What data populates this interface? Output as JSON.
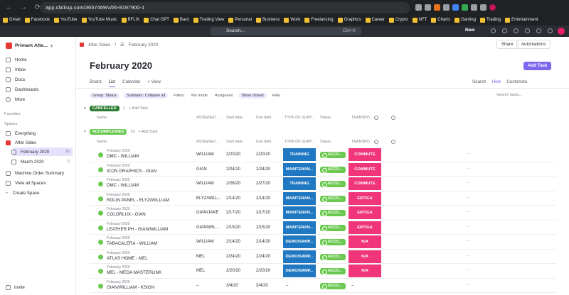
{
  "browser": {
    "url": "app.clickup.com/3657469/v/l/6-8197900-1",
    "bookmarks": [
      "Gmail",
      "Facebook",
      "YouTube",
      "YouTube Music",
      "BFLIX",
      "Chat GPT",
      "Bard",
      "Trading View",
      "Personal",
      "Business",
      "Work",
      "Freelancing",
      "Graphics",
      "Career",
      "Crypto",
      "NFT",
      "Charts",
      "Gaming",
      "Trading",
      "Entertainment"
    ]
  },
  "topbar": {
    "search_placeholder": "Search...",
    "shortcut": "Ctrl+K",
    "new_label": "New"
  },
  "sidebar": {
    "workspace": "Primark Afte...",
    "nav": [
      "Home",
      "Inbox",
      "Docs",
      "Dashboards",
      "More"
    ],
    "favorites_label": "Favorites",
    "spaces_label": "Spaces",
    "everything": "Everything",
    "space_name": "After Sales",
    "lists": [
      {
        "name": "February 2020",
        "count": "16"
      },
      {
        "name": "March 2020",
        "count": "5"
      }
    ],
    "extra": [
      "Machine Order Summary",
      "View all Spaces",
      "Create Space"
    ],
    "invite": "Invite"
  },
  "header": {
    "crumb_space": "After Sales",
    "crumb_list": "February 2020",
    "share": "Share",
    "automations": "Automations",
    "title": "February 2020",
    "add_task": "Add Task"
  },
  "views": {
    "tabs": [
      "Board",
      "List",
      "Calendar",
      "+ View"
    ],
    "right": [
      "Search",
      "Hide",
      "Customize"
    ]
  },
  "filters": {
    "group": "Group: Status",
    "subtasks": "Subtasks: Collapse all",
    "items": [
      "Filters",
      "Me mode",
      "Assignees",
      "Show closed",
      "Hide"
    ],
    "search_placeholder": "Search tasks..."
  },
  "columns": [
    "Name",
    "ASSIGNED ...",
    "Start date",
    "Due date",
    "TYPE OF SUPP...",
    "Status",
    "TRANSPO..."
  ],
  "groups": {
    "cancelled": {
      "label": "CANCELLED",
      "count": "1",
      "add": "+ Add Task",
      "color": "#2e7d32"
    },
    "accomplished": {
      "label": "ACCOMPLISHED",
      "count": "10",
      "add": "+ Add Task",
      "color": "#6bc950"
    }
  },
  "status_label": "ACCO...",
  "tasks": [
    {
      "parent": "February 2020",
      "name": "DMC - WILLIAM",
      "assigned": "WILLIAM",
      "start": "2/20/20",
      "due": "2/20/20",
      "type": "TRAINING",
      "transport": "COMMUTE"
    },
    {
      "parent": "February 2020",
      "name": "ICON GRAPHICS - GIAN",
      "assigned": "GIAN",
      "start": "2/24/20",
      "due": "2/24/20",
      "type": "MAINTENAN...",
      "transport": "COMMUTE"
    },
    {
      "parent": "February 2020",
      "name": "DMC - WILLIAM",
      "assigned": "WILLIAM",
      "start": "2/26/20",
      "due": "2/27/20",
      "type": "TRAINING",
      "transport": "COMMUTE"
    },
    {
      "parent": "February 2020",
      "name": "ROLIN PANEL - ELYZ/WILLIAM",
      "assigned": "ELYZ/WILL...",
      "start": "2/14/20",
      "due": "2/14/20",
      "type": "MAINTENAN...",
      "transport": "ERTIGA"
    },
    {
      "parent": "February 2020",
      "name": "COLORLUX - GIAN",
      "assigned": "GIAN/JAKE",
      "start": "2/17/20",
      "due": "2/17/20",
      "type": "MAINTENAN...",
      "transport": "ERTIGA"
    },
    {
      "parent": "February 2020",
      "name": "LEATHER PH - GIAN/WILLIAM",
      "assigned": "GIAN/WIL...",
      "start": "2/15/20",
      "due": "2/15/20",
      "type": "MAINTENAN...",
      "transport": "ERTIGA"
    },
    {
      "parent": "February 2020",
      "name": "TABACALERA - WILLIAM",
      "assigned": "WILLIAM",
      "start": "2/14/20",
      "due": "2/14/20",
      "type": "DEMO/SAMP...",
      "transport": "N/A"
    },
    {
      "parent": "February 2020",
      "name": "ATLAS HOME - MEL",
      "assigned": "MEL",
      "start": "2/24/20",
      "due": "2/24/20",
      "type": "DEMO/SAMP...",
      "transport": "N/A"
    },
    {
      "parent": "February 2020",
      "name": "MEL - MEGA MASTERLINK",
      "assigned": "MEL",
      "start": "2/20/20",
      "due": "2/20/20",
      "type": "DEMO/SAMP...",
      "transport": "N/A"
    },
    {
      "parent": "February 2020",
      "name": "GIAN/WILLIAM - KSIGN",
      "assigned": "–",
      "start": "3/4/20",
      "due": "3/4/20",
      "type": "–",
      "transport": "–"
    }
  ],
  "colors": {
    "accent": "#7b68ee",
    "type_blue": "#1f78c1",
    "transport_pink": "#f0357a",
    "status_green": "#6bc950"
  }
}
